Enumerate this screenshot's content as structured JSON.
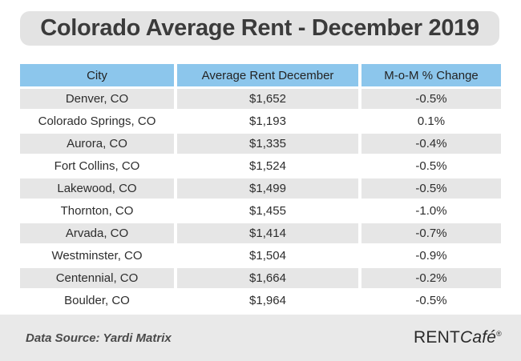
{
  "title": "Colorado Average Rent - December 2019",
  "table": {
    "columns": [
      "City",
      "Average Rent December",
      "M-o-M % Change"
    ],
    "rows": [
      {
        "city": "Denver, CO",
        "rent": "$1,652",
        "change": "-0.5%"
      },
      {
        "city": "Colorado Springs, CO",
        "rent": "$1,193",
        "change": "0.1%"
      },
      {
        "city": "Aurora, CO",
        "rent": "$1,335",
        "change": "-0.4%"
      },
      {
        "city": "Fort Collins, CO",
        "rent": "$1,524",
        "change": "-0.5%"
      },
      {
        "city": "Lakewood, CO",
        "rent": "$1,499",
        "change": "-0.5%"
      },
      {
        "city": "Thornton, CO",
        "rent": "$1,455",
        "change": "-1.0%"
      },
      {
        "city": "Arvada, CO",
        "rent": "$1,414",
        "change": "-0.7%"
      },
      {
        "city": "Westminster, CO",
        "rent": "$1,504",
        "change": "-0.9%"
      },
      {
        "city": "Centennial, CO",
        "rent": "$1,664",
        "change": "-0.2%"
      },
      {
        "city": "Boulder, CO",
        "rent": "$1,964",
        "change": "-0.5%"
      }
    ]
  },
  "footer": {
    "source": "Data Source: Yardi Matrix",
    "brand_rent": "RENT",
    "brand_cafe": "Café",
    "brand_reg": "®"
  },
  "colors": {
    "header_bg": "#8cc6ec",
    "row_alt_bg": "#e6e6e6",
    "title_bg": "#e3e3e3",
    "footer_bg": "#e9e9e9"
  },
  "chart_data": {
    "type": "table",
    "title": "Colorado Average Rent - December 2019",
    "columns": [
      "City",
      "Average Rent December",
      "M-o-M % Change"
    ],
    "rows": [
      [
        "Denver, CO",
        1652,
        -0.5
      ],
      [
        "Colorado Springs, CO",
        1193,
        0.1
      ],
      [
        "Aurora, CO",
        1335,
        -0.4
      ],
      [
        "Fort Collins, CO",
        1524,
        -0.5
      ],
      [
        "Lakewood, CO",
        1499,
        -0.5
      ],
      [
        "Thornton, CO",
        1455,
        -1.0
      ],
      [
        "Arvada, CO",
        1414,
        -0.7
      ],
      [
        "Westminster, CO",
        1504,
        -0.9
      ],
      [
        "Centennial, CO",
        1664,
        -0.2
      ],
      [
        "Boulder, CO",
        1964,
        -0.5
      ]
    ],
    "source": "Yardi Matrix"
  }
}
